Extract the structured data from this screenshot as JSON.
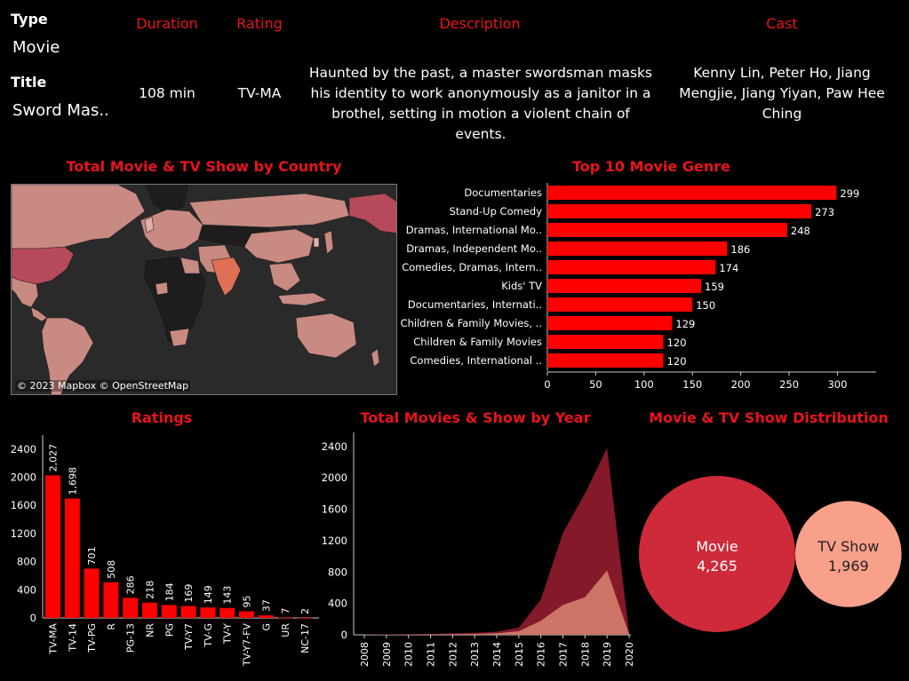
{
  "detail": {
    "type_label": "Type",
    "type_value": "Movie",
    "title_label": "Title",
    "title_value": "Sword Mas..",
    "headers": {
      "duration": "Duration",
      "rating": "Rating",
      "description": "Description",
      "cast": "Cast"
    },
    "duration": "108 min",
    "rating": "TV-MA",
    "description": "Haunted by the past, a master swordsman masks his identity to work anonymously as a janitor in a brothel, setting in motion a violent chain of events.",
    "cast": "Kenny Lin, Peter Ho, Jiang Mengjie, Jiang Yiyan, Paw Hee Ching"
  },
  "map": {
    "title": "Total Movie & TV Show by Country",
    "attribution": "© 2023 Mapbox © OpenStreetMap",
    "colors": {
      "ocean": "#2a2a2a",
      "land_none": "#1d1d1d",
      "land_low": "#c98a82",
      "land_mid": "#b74a5a",
      "land_high": "#e07055"
    }
  },
  "chart_data": [
    {
      "type": "bar",
      "orientation": "horizontal",
      "title": "Top 10 Movie Genre",
      "categories": [
        "Documentaries",
        "Stand-Up Comedy",
        "Dramas, International Mo..",
        "Dramas, Independent Mo..",
        "Comedies, Dramas, Intern..",
        "Kids' TV",
        "Documentaries, Internati..",
        "Children & Family Movies, ..",
        "Children & Family Movies",
        "Comedies, International .."
      ],
      "values": [
        299,
        273,
        248,
        186,
        174,
        159,
        150,
        129,
        120,
        120
      ],
      "xticks": [
        0,
        50,
        100,
        150,
        200,
        250,
        300
      ],
      "xlim": [
        0,
        340
      ],
      "color": "#ff0000"
    },
    {
      "type": "bar",
      "title": "Ratings",
      "categories": [
        "TV-MA",
        "TV-14",
        "TV-PG",
        "R",
        "PG-13",
        "NR",
        "PG",
        "TV-Y7",
        "TV-G",
        "TV-Y",
        "TV-Y7-FV",
        "G",
        "UR",
        "NC-17"
      ],
      "values": [
        2027,
        1698,
        701,
        508,
        286,
        218,
        184,
        169,
        149,
        143,
        95,
        37,
        7,
        2
      ],
      "value_labels": [
        "2,027",
        "1,698",
        "701",
        "508",
        "286",
        "218",
        "184",
        "169",
        "149",
        "143",
        "95",
        "37",
        "7",
        "2"
      ],
      "yticks": [
        0,
        400,
        800,
        1200,
        1600,
        2000,
        2400
      ],
      "ylim": [
        0,
        2600
      ],
      "color": "#ff0000"
    },
    {
      "type": "area",
      "title": "Total Movies & Show by Year",
      "x": [
        2008,
        2009,
        2010,
        2011,
        2012,
        2013,
        2014,
        2015,
        2016,
        2017,
        2018,
        2019,
        2020
      ],
      "series": [
        {
          "values": [
            3,
            5,
            8,
            12,
            18,
            25,
            40,
            90,
            450,
            1300,
            1800,
            2380,
            20
          ],
          "color": "#8b1a2b"
        },
        {
          "values": [
            1,
            2,
            3,
            5,
            8,
            12,
            20,
            45,
            180,
            380,
            480,
            820,
            10
          ],
          "color": "#d07a6a"
        }
      ],
      "yticks": [
        0,
        400,
        800,
        1200,
        1600,
        2000,
        2400
      ],
      "ylim": [
        0,
        2500
      ]
    },
    {
      "type": "bubble",
      "title": "Movie & TV Show Distribution",
      "categories": [
        "Movie",
        "TV Show"
      ],
      "values": [
        4265,
        1969
      ],
      "value_labels": [
        "4,265",
        "1,969"
      ],
      "colors": [
        "#cf2a3a",
        "#f9a08a"
      ]
    }
  ]
}
